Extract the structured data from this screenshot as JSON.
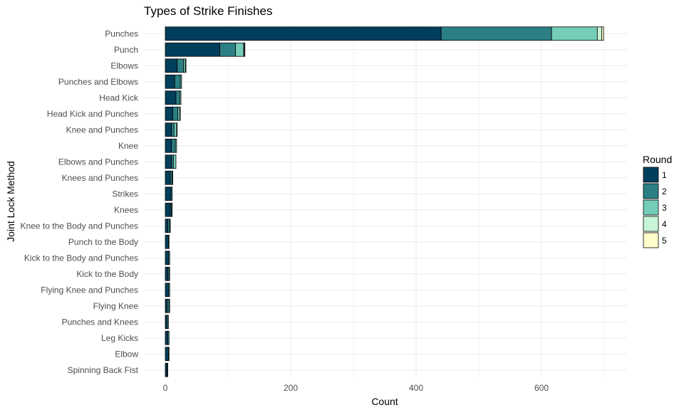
{
  "chart_data": {
    "type": "bar",
    "orientation": "horizontal",
    "stacked": true,
    "title": "Types of Strike Finishes",
    "xlabel": "Count",
    "ylabel": "Joint Lock Method",
    "xlim": [
      0,
      730
    ],
    "xticks": [
      0,
      200,
      400,
      600
    ],
    "grid": true,
    "legend": {
      "title": "Round",
      "position": "right"
    },
    "categories": [
      "Punches",
      "Punch",
      "Elbows",
      "Punches and Elbows",
      "Head Kick",
      "Head Kick and Punches",
      "Knee and Punches",
      "Knee",
      "Elbows and Punches",
      "Knees and Punches",
      "Strikes",
      "Knees",
      "Knee to the Body and Punches",
      "Punch to the Body",
      "Kick to the Body and Punches",
      "Kick to the Body",
      "Flying Knee and Punches",
      "Flying Knee",
      "Punches and Knees",
      "Leg Kicks",
      "Elbow",
      "Spinning Back Fist"
    ],
    "series": [
      {
        "name": "1",
        "color": "#003f5c",
        "values": [
          440,
          87,
          19,
          15,
          17,
          12,
          10,
          10,
          10,
          8,
          9,
          8,
          4,
          5,
          5,
          4,
          5,
          3,
          3,
          4,
          5,
          3
        ]
      },
      {
        "name": "2",
        "color": "#2c8085",
        "values": [
          176,
          25,
          10,
          9,
          6,
          8,
          4,
          6,
          3,
          3,
          2,
          2,
          3,
          1,
          2,
          2,
          2,
          3,
          2,
          2,
          1,
          1
        ]
      },
      {
        "name": "3",
        "color": "#74cdb8",
        "values": [
          73,
          13,
          3,
          2,
          2,
          3,
          4,
          2,
          4,
          1,
          0,
          1,
          1,
          0,
          0,
          1,
          0,
          1,
          0,
          0,
          0,
          0
        ]
      },
      {
        "name": "4",
        "color": "#c8f5d8",
        "values": [
          7,
          1,
          1,
          0,
          0,
          1,
          1,
          0,
          0,
          0,
          0,
          0,
          0,
          0,
          0,
          0,
          0,
          0,
          0,
          0,
          0,
          0
        ]
      },
      {
        "name": "5",
        "color": "#ffffcc",
        "values": [
          3,
          1,
          0,
          0,
          0,
          0,
          0,
          0,
          0,
          0,
          0,
          0,
          0,
          0,
          0,
          0,
          0,
          0,
          0,
          0,
          0,
          0
        ]
      }
    ]
  }
}
